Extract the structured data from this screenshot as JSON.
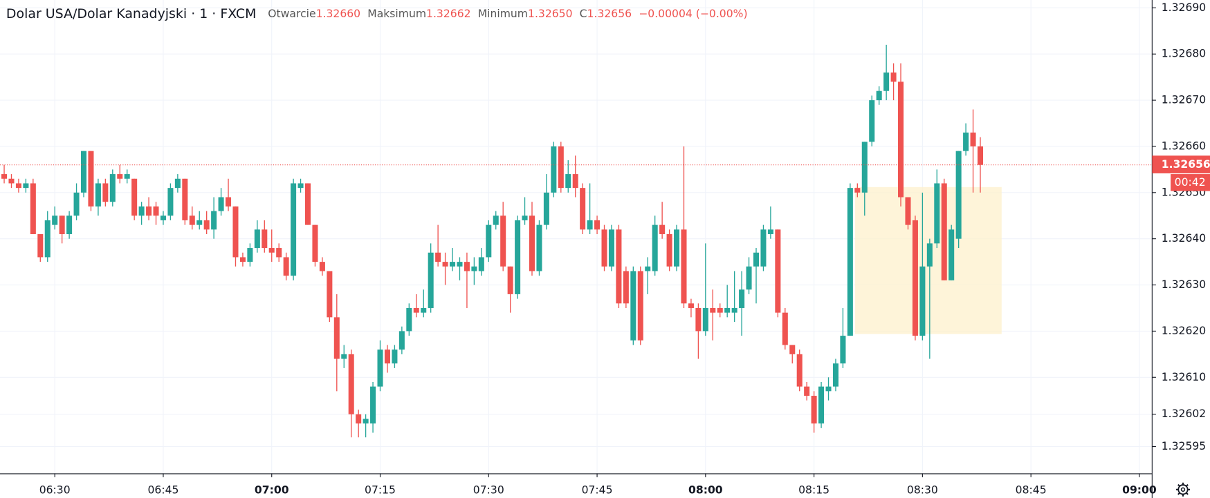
{
  "header": {
    "title": "Dolar USA/Dolar Kanadyjski · 1 · FXCM",
    "open_label": "Otwarcie",
    "open": "1.32660",
    "high_label": "Maksimum",
    "high": "1.32662",
    "low_label": "Minimum",
    "low": "1.32650",
    "close_label": "C",
    "close": "1.32656",
    "change": "−0.00004 (−0.00%)"
  },
  "chart_data": {
    "type": "candlestick",
    "x": [
      "06:23",
      "06:24",
      "06:25",
      "06:26",
      "06:27",
      "06:28",
      "06:29",
      "06:30",
      "06:31",
      "06:32",
      "06:33",
      "06:34",
      "06:35",
      "06:36",
      "06:37",
      "06:38",
      "06:39",
      "06:40",
      "06:41",
      "06:42",
      "06:43",
      "06:44",
      "06:45",
      "06:46",
      "06:47",
      "06:48",
      "06:49",
      "06:50",
      "06:51",
      "06:52",
      "06:53",
      "06:54",
      "06:55",
      "06:56",
      "06:57",
      "06:58",
      "06:59",
      "07:00",
      "07:01",
      "07:02",
      "07:03",
      "07:04",
      "07:05",
      "07:06",
      "07:07",
      "07:08",
      "07:09",
      "07:10",
      "07:11",
      "07:12",
      "07:13",
      "07:14",
      "07:15",
      "07:16",
      "07:17",
      "07:18",
      "07:19",
      "07:20",
      "07:21",
      "07:22",
      "07:23",
      "07:24",
      "07:25",
      "07:26",
      "07:27",
      "07:28",
      "07:29",
      "07:30",
      "07:31",
      "07:32",
      "07:33",
      "07:34",
      "07:35",
      "07:36",
      "07:37",
      "07:38",
      "07:39",
      "07:40",
      "07:41",
      "07:42",
      "07:43",
      "07:44",
      "07:45",
      "07:46",
      "07:47",
      "07:48",
      "07:49",
      "07:50",
      "07:51",
      "07:52",
      "07:53",
      "07:54",
      "07:55",
      "07:56",
      "07:57",
      "07:58",
      "07:59",
      "08:00",
      "08:01",
      "08:02",
      "08:03",
      "08:04",
      "08:05",
      "08:06",
      "08:07",
      "08:08",
      "08:09",
      "08:10",
      "08:11",
      "08:12",
      "08:13",
      "08:14",
      "08:15",
      "08:16",
      "08:17",
      "08:18",
      "08:19",
      "08:20",
      "08:21",
      "08:22",
      "08:23",
      "08:24",
      "08:25",
      "08:26",
      "08:27",
      "08:28",
      "08:29",
      "08:30",
      "08:31",
      "08:32",
      "08:33",
      "08:34",
      "08:35",
      "08:36",
      "08:37",
      "08:38"
    ],
    "ohlc": [
      [
        1.32654,
        1.32656,
        1.32652,
        1.32653
      ],
      [
        1.32653,
        1.32654,
        1.32651,
        1.32652
      ],
      [
        1.32652,
        1.32653,
        1.3265,
        1.32651
      ],
      [
        1.32651,
        1.32653,
        1.3265,
        1.32652
      ],
      [
        1.32652,
        1.32653,
        1.32641,
        1.32641
      ],
      [
        1.32641,
        1.32641,
        1.32635,
        1.32636
      ],
      [
        1.32636,
        1.32646,
        1.32635,
        1.32644
      ],
      [
        1.32643,
        1.32647,
        1.32642,
        1.32645
      ],
      [
        1.32645,
        1.32645,
        1.32639,
        1.32641
      ],
      [
        1.32641,
        1.32646,
        1.3264,
        1.32645
      ],
      [
        1.32645,
        1.32652,
        1.32644,
        1.3265
      ],
      [
        1.3265,
        1.32659,
        1.32649,
        1.32659
      ],
      [
        1.32659,
        1.32659,
        1.32646,
        1.32647
      ],
      [
        1.32647,
        1.32653,
        1.32645,
        1.32652
      ],
      [
        1.32652,
        1.32653,
        1.32647,
        1.32648
      ],
      [
        1.32648,
        1.32655,
        1.32647,
        1.32654
      ],
      [
        1.32654,
        1.32656,
        1.32652,
        1.32653
      ],
      [
        1.32653,
        1.32655,
        1.32652,
        1.32654
      ],
      [
        1.32653,
        1.32653,
        1.32644,
        1.32645
      ],
      [
        1.32645,
        1.32648,
        1.32643,
        1.32647
      ],
      [
        1.32647,
        1.32649,
        1.32644,
        1.32645
      ],
      [
        1.32647,
        1.32648,
        1.32643,
        1.32645
      ],
      [
        1.32644,
        1.32646,
        1.32643,
        1.32645
      ],
      [
        1.32645,
        1.32652,
        1.32644,
        1.32651
      ],
      [
        1.32651,
        1.32654,
        1.3265,
        1.32653
      ],
      [
        1.32653,
        1.32653,
        1.32643,
        1.32644
      ],
      [
        1.32645,
        1.32647,
        1.32642,
        1.32643
      ],
      [
        1.32643,
        1.32646,
        1.32642,
        1.32644
      ],
      [
        1.32644,
        1.32646,
        1.32641,
        1.32642
      ],
      [
        1.32642,
        1.32649,
        1.3264,
        1.32646
      ],
      [
        1.32646,
        1.32651,
        1.32645,
        1.32649
      ],
      [
        1.32649,
        1.32653,
        1.32646,
        1.32647
      ],
      [
        1.32647,
        1.32647,
        1.32634,
        1.32636
      ],
      [
        1.32636,
        1.32637,
        1.32634,
        1.32635
      ],
      [
        1.32635,
        1.32639,
        1.32634,
        1.32638
      ],
      [
        1.32638,
        1.32644,
        1.32637,
        1.32642
      ],
      [
        1.32642,
        1.32644,
        1.32637,
        1.32638
      ],
      [
        1.32638,
        1.32642,
        1.32635,
        1.32637
      ],
      [
        1.32638,
        1.32639,
        1.32635,
        1.32636
      ],
      [
        1.32636,
        1.32637,
        1.32631,
        1.32632
      ],
      [
        1.32632,
        1.32653,
        1.32631,
        1.32652
      ],
      [
        1.32651,
        1.32653,
        1.3265,
        1.32652
      ],
      [
        1.32652,
        1.32652,
        1.32643,
        1.32643
      ],
      [
        1.32643,
        1.32643,
        1.32634,
        1.32635
      ],
      [
        1.32635,
        1.32636,
        1.32632,
        1.32633
      ],
      [
        1.32633,
        1.32633,
        1.32622,
        1.32623
      ],
      [
        1.32623,
        1.32628,
        1.32607,
        1.32614
      ],
      [
        1.32614,
        1.32617,
        1.32612,
        1.32615
      ],
      [
        1.32615,
        1.32616,
        1.32597,
        1.32602
      ],
      [
        1.32602,
        1.32603,
        1.32597,
        1.326
      ],
      [
        1.326,
        1.32602,
        1.32597,
        1.32601
      ],
      [
        1.326,
        1.32609,
        1.32598,
        1.32608
      ],
      [
        1.32608,
        1.32618,
        1.32607,
        1.32616
      ],
      [
        1.32616,
        1.32617,
        1.32611,
        1.32613
      ],
      [
        1.32613,
        1.32617,
        1.32612,
        1.32616
      ],
      [
        1.32616,
        1.32621,
        1.32615,
        1.3262
      ],
      [
        1.3262,
        1.32626,
        1.32619,
        1.32625
      ],
      [
        1.32625,
        1.32628,
        1.32623,
        1.32624
      ],
      [
        1.32624,
        1.32629,
        1.32623,
        1.32625
      ],
      [
        1.32625,
        1.32639,
        1.32624,
        1.32637
      ],
      [
        1.32637,
        1.32643,
        1.32634,
        1.32635
      ],
      [
        1.32635,
        1.32637,
        1.3263,
        1.32634
      ],
      [
        1.32634,
        1.32638,
        1.32633,
        1.32635
      ],
      [
        1.32634,
        1.32636,
        1.32631,
        1.32635
      ],
      [
        1.32635,
        1.32637,
        1.32625,
        1.32633
      ],
      [
        1.32633,
        1.32636,
        1.3263,
        1.32634
      ],
      [
        1.32633,
        1.32638,
        1.32632,
        1.32636
      ],
      [
        1.32636,
        1.32644,
        1.32635,
        1.32643
      ],
      [
        1.32643,
        1.32646,
        1.32642,
        1.32645
      ],
      [
        1.32645,
        1.32648,
        1.32633,
        1.32634
      ],
      [
        1.32634,
        1.32634,
        1.32624,
        1.32628
      ],
      [
        1.32628,
        1.32645,
        1.32627,
        1.32644
      ],
      [
        1.32644,
        1.32649,
        1.32643,
        1.32645
      ],
      [
        1.32645,
        1.32648,
        1.32632,
        1.32633
      ],
      [
        1.32633,
        1.32644,
        1.32632,
        1.32643
      ],
      [
        1.32643,
        1.32654,
        1.32642,
        1.3265
      ],
      [
        1.3265,
        1.32661,
        1.32649,
        1.3266
      ],
      [
        1.3266,
        1.32661,
        1.3265,
        1.32651
      ],
      [
        1.32651,
        1.32657,
        1.3265,
        1.32654
      ],
      [
        1.32654,
        1.32658,
        1.32649,
        1.32651
      ],
      [
        1.32651,
        1.32652,
        1.32641,
        1.32642
      ],
      [
        1.32642,
        1.32652,
        1.32641,
        1.32644
      ],
      [
        1.32644,
        1.32645,
        1.32641,
        1.32642
      ],
      [
        1.32642,
        1.32643,
        1.32633,
        1.32634
      ],
      [
        1.32634,
        1.32643,
        1.32633,
        1.32642
      ],
      [
        1.32642,
        1.32643,
        1.32625,
        1.32626
      ],
      [
        1.32633,
        1.32634,
        1.32625,
        1.32626
      ],
      [
        1.32618,
        1.32634,
        1.32617,
        1.32633
      ],
      [
        1.32633,
        1.32634,
        1.32617,
        1.32618
      ],
      [
        1.32633,
        1.32636,
        1.32628,
        1.32634
      ],
      [
        1.32633,
        1.32645,
        1.32632,
        1.32643
      ],
      [
        1.32643,
        1.32648,
        1.3264,
        1.32641
      ],
      [
        1.32641,
        1.32642,
        1.32633,
        1.32634
      ],
      [
        1.32634,
        1.32643,
        1.32633,
        1.32642
      ],
      [
        1.32642,
        1.3266,
        1.32625,
        1.32626
      ],
      [
        1.32626,
        1.32627,
        1.32623,
        1.32625
      ],
      [
        1.32625,
        1.32626,
        1.32614,
        1.3262
      ],
      [
        1.3262,
        1.32639,
        1.32619,
        1.32625
      ],
      [
        1.32625,
        1.32629,
        1.32618,
        1.32624
      ],
      [
        1.32625,
        1.32626,
        1.32623,
        1.32624
      ],
      [
        1.32624,
        1.3263,
        1.32623,
        1.32625
      ],
      [
        1.32624,
        1.32633,
        1.32622,
        1.32625
      ],
      [
        1.32625,
        1.32633,
        1.32619,
        1.32629
      ],
      [
        1.32629,
        1.32636,
        1.32628,
        1.32634
      ],
      [
        1.32634,
        1.32638,
        1.32626,
        1.32637
      ],
      [
        1.32634,
        1.32643,
        1.32633,
        1.32642
      ],
      [
        1.32641,
        1.32647,
        1.3264,
        1.32642
      ],
      [
        1.32642,
        1.32642,
        1.32623,
        1.32624
      ],
      [
        1.32624,
        1.32625,
        1.32616,
        1.32617
      ],
      [
        1.32617,
        1.32617,
        1.32613,
        1.32615
      ],
      [
        1.32615,
        1.32616,
        1.32607,
        1.32608
      ],
      [
        1.32608,
        1.32609,
        1.32605,
        1.32606
      ],
      [
        1.32606,
        1.32607,
        1.32598,
        1.326
      ],
      [
        1.326,
        1.32609,
        1.32599,
        1.32608
      ],
      [
        1.32607,
        1.3261,
        1.32605,
        1.32608
      ],
      [
        1.32608,
        1.32614,
        1.32607,
        1.32613
      ],
      [
        1.32613,
        1.32625,
        1.32612,
        1.32619
      ],
      [
        1.32619,
        1.32652,
        1.32619,
        1.32651
      ],
      [
        1.32651,
        1.32652,
        1.32649,
        1.3265
      ],
      [
        1.3265,
        1.32661,
        1.32645,
        1.32661
      ],
      [
        1.32661,
        1.32671,
        1.3266,
        1.3267
      ],
      [
        1.3267,
        1.32673,
        1.32669,
        1.32672
      ],
      [
        1.32672,
        1.32682,
        1.3267,
        1.32676
      ],
      [
        1.32676,
        1.32678,
        1.3267,
        1.32674
      ],
      [
        1.32674,
        1.32678,
        1.32647,
        1.32649
      ],
      [
        1.32649,
        1.32649,
        1.32642,
        1.32643
      ],
      [
        1.32644,
        1.32645,
        1.32618,
        1.32619
      ],
      [
        1.32619,
        1.3265,
        1.32618,
        1.32634
      ],
      [
        1.32634,
        1.3264,
        1.32614,
        1.32639
      ],
      [
        1.32639,
        1.32655,
        1.32638,
        1.32652
      ],
      [
        1.32652,
        1.32653,
        1.32631,
        1.32631
      ],
      [
        1.32631,
        1.32643,
        1.32631,
        1.32642
      ],
      [
        1.3264,
        1.32659,
        1.32638,
        1.32659
      ],
      [
        1.32659,
        1.32665,
        1.32658,
        1.32663
      ],
      [
        1.32663,
        1.32668,
        1.3265,
        1.3266
      ],
      [
        1.3266,
        1.32662,
        1.3265,
        1.32656
      ]
    ],
    "up_color": "#26a69a",
    "down_color": "#ef5350",
    "ylim": [
      1.325892,
      1.326917
    ],
    "yticks": [
      {
        "value": 1.3269,
        "label": "1.32690"
      },
      {
        "value": 1.3268,
        "label": "1.32680"
      },
      {
        "value": 1.3267,
        "label": "1.32670"
      },
      {
        "value": 1.3266,
        "label": "1.32660"
      },
      {
        "value": 1.3265,
        "label": "1.32650"
      },
      {
        "value": 1.3264,
        "label": "1.32640"
      },
      {
        "value": 1.3263,
        "label": "1.32630"
      },
      {
        "value": 1.3262,
        "label": "1.32620"
      },
      {
        "value": 1.3261,
        "label": "1.32610"
      },
      1.32602,
      1.32595
    ],
    "xticks": [
      "06:30",
      "06:45",
      "07:00",
      "07:15",
      "07:30",
      "07:45",
      "08:00",
      "08:15",
      "08:30",
      "08:45",
      "09:00"
    ],
    "grid": true,
    "last_price": {
      "value": 1.32656,
      "label": "1.32656"
    },
    "countdown": "00:42"
  }
}
